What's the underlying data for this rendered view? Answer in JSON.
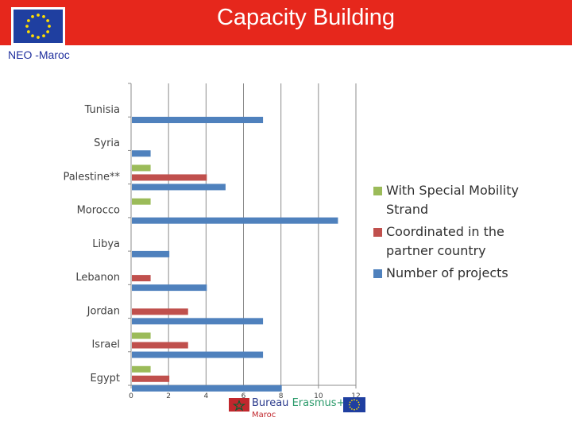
{
  "header": {
    "title": "Capacity Building",
    "subtitle": "NEO -Maroc",
    "background_color": "#e6271c",
    "logo": "eu-flag-logo"
  },
  "chart_data": {
    "type": "bar",
    "orientation": "horizontal",
    "categories": [
      "Tunisia",
      "Syria",
      "Palestine**",
      "Morocco",
      "Libya",
      "Lebanon",
      "Jordan",
      "Israel",
      "Egypt"
    ],
    "series": [
      {
        "name": "With Special Mobility Strand",
        "color": "#9bbb59",
        "values": [
          0,
          0,
          1,
          1,
          0,
          0,
          0,
          1,
          1
        ]
      },
      {
        "name": "Coordinated in the partner country",
        "color": "#c0504d",
        "values": [
          0,
          0,
          4,
          0,
          0,
          1,
          3,
          3,
          2
        ]
      },
      {
        "name": "Number of projects",
        "color": "#4f81bd",
        "values": [
          7,
          1,
          5,
          11,
          2,
          4,
          7,
          7,
          8
        ]
      }
    ],
    "xlim": [
      0,
      12
    ],
    "xticks": [
      0,
      2,
      4,
      6,
      8,
      10,
      12
    ],
    "grid": "vertical",
    "legend_position": "right"
  },
  "legend": {
    "items": [
      {
        "lines": [
          "With Special Mobility",
          "Strand"
        ],
        "color": "#9bbb59"
      },
      {
        "lines": [
          "Coordinated in the",
          "partner country"
        ],
        "color": "#c0504d"
      },
      {
        "lines": [
          "Number of projects"
        ],
        "color": "#4f81bd"
      }
    ]
  },
  "footer": {
    "logo_word1": "Bureau",
    "logo_word2": "Erasmus+",
    "logo_sub": "Maroc"
  }
}
